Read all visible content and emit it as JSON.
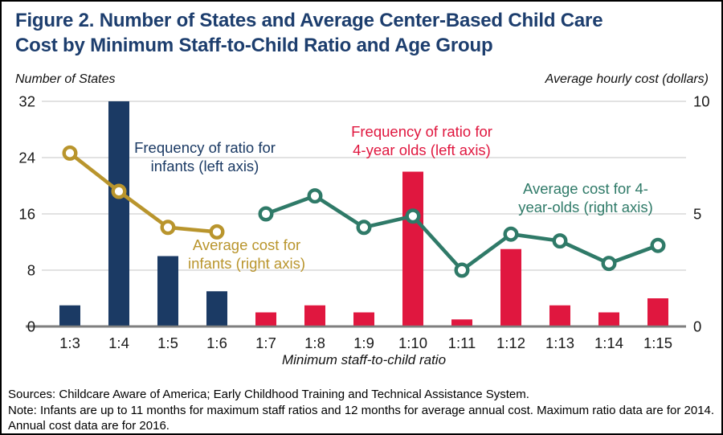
{
  "title": {
    "line1": "Figure 2. Number of States and Average Center-Based Child Care",
    "line2": "Cost by Minimum Staff-to-Child Ratio and Age Group"
  },
  "notes": {
    "sources": "Sources: Childcare Aware of America; Early Childhood Training and Technical Assistance System.",
    "note": "Note: Infants are up to 11 months for maximum staff ratios and 12 months for average annual cost. Maximum ratio data are for 2014. Annual cost data are for 2016."
  },
  "colors": {
    "title_navy": "#1d3e6e",
    "infant_bar_navy": "#1b3a64",
    "fouryo_bar_red": "#e0173f",
    "infant_line_gold": "#b9952d",
    "fouryo_line_teal": "#2f7a68",
    "gridline": "#d9d9d9",
    "zero_axis": "#7f7f7f",
    "tick_text": "#1a1a1a"
  },
  "chart_data": {
    "type": "combo-bar-line-dual-axis",
    "categories": [
      "1:3",
      "1:4",
      "1:5",
      "1:6",
      "1:7",
      "1:8",
      "1:9",
      "1:10",
      "1:11",
      "1:12",
      "1:13",
      "1:14",
      "1:15"
    ],
    "xlabel": "Minimum staff-to-child ratio",
    "left_axis": {
      "label": "Number of States",
      "tick_labels": [
        32,
        24,
        16,
        8,
        0
      ],
      "range": [
        0,
        32
      ],
      "gridlines_at": [
        32,
        24,
        16,
        8
      ]
    },
    "right_axis": {
      "label": "Average hourly cost (dollars)",
      "tick_labels": [
        10,
        5,
        0
      ],
      "range": [
        0,
        10
      ]
    },
    "series": [
      {
        "name": "Frequency of ratio for infants",
        "type": "bar",
        "axis": "left",
        "color_key": "infant_bar_navy",
        "values": [
          3,
          32,
          10,
          5,
          null,
          null,
          null,
          null,
          null,
          null,
          null,
          null,
          null
        ]
      },
      {
        "name": "Frequency of ratio for 4-year olds",
        "type": "bar",
        "axis": "left",
        "color_key": "fouryo_bar_red",
        "values": [
          null,
          null,
          null,
          null,
          2,
          3,
          2,
          22,
          1,
          11,
          3,
          2,
          4
        ]
      },
      {
        "name": "Average cost for infants",
        "type": "line",
        "axis": "right",
        "color_key": "infant_line_gold",
        "values": [
          7.7,
          6.0,
          4.4,
          4.2,
          null,
          null,
          null,
          null,
          null,
          null,
          null,
          null,
          null
        ]
      },
      {
        "name": "Average cost for 4-year-olds",
        "type": "line",
        "axis": "right",
        "color_key": "fouryo_line_teal",
        "values": [
          null,
          null,
          null,
          null,
          5.0,
          5.8,
          4.4,
          4.9,
          2.5,
          4.1,
          3.8,
          2.8,
          3.6
        ]
      }
    ],
    "annotations": [
      {
        "id": "infant-frequency",
        "line1": "Frequency of ratio for",
        "line2": "infants (left axis)",
        "color_key": "infant_bar_navy"
      },
      {
        "id": "fouryo-frequency",
        "line1": "Frequency of ratio for",
        "line2": "4-year olds (left axis)",
        "color_key": "fouryo_bar_red"
      },
      {
        "id": "infant-cost",
        "line1": "Average cost for",
        "line2": "infants (right axis)",
        "color_key": "infant_line_gold"
      },
      {
        "id": "fouryo-cost",
        "line1": "Average cost for 4-",
        "line2": "year-olds (right axis)",
        "color_key": "fouryo_line_teal"
      }
    ]
  }
}
